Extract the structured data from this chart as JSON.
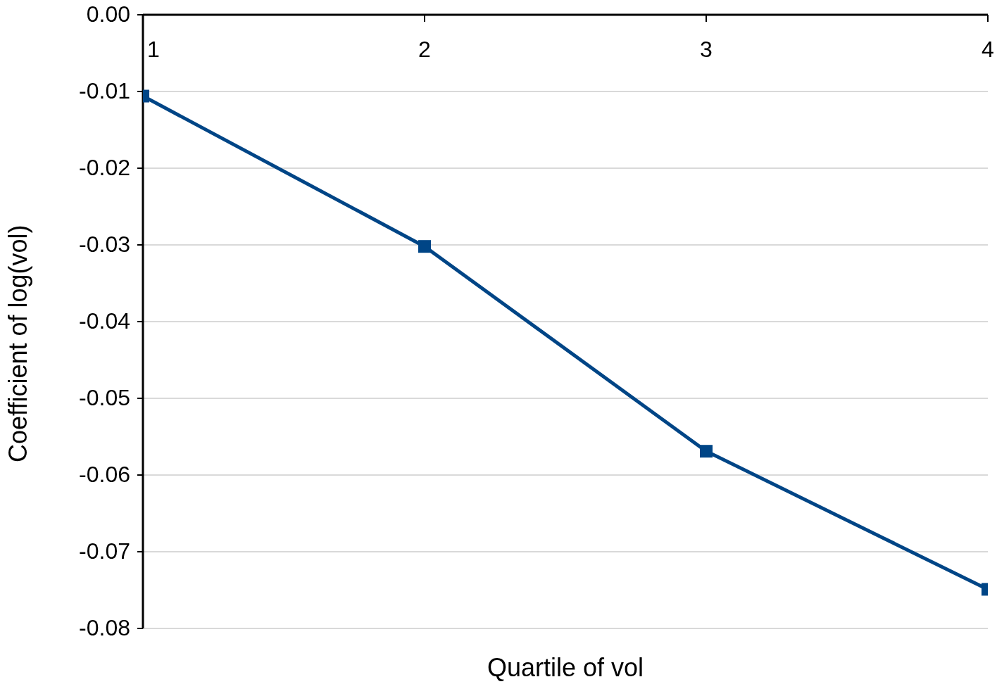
{
  "chart_data": {
    "type": "line",
    "xlabel": "Quartile of vol",
    "ylabel": "Coefficient of log(vol)",
    "x": [
      1,
      2,
      3,
      4
    ],
    "series": [
      {
        "color": "#004586",
        "values": [
          -0.0106,
          -0.0302,
          -0.0569,
          -0.0749
        ]
      }
    ],
    "xlim": [
      1,
      4
    ],
    "xticks": [
      1,
      2,
      3,
      4
    ],
    "ylim": [
      -0.08,
      0
    ],
    "yticks": [
      {
        "value": 0,
        "label": "0.00"
      },
      -0.01,
      -0.02,
      -0.03,
      -0.04,
      -0.05,
      -0.06,
      -0.07,
      -0.08
    ],
    "grid": "y",
    "marker": "square",
    "line_style": "solid",
    "legend": false
  }
}
